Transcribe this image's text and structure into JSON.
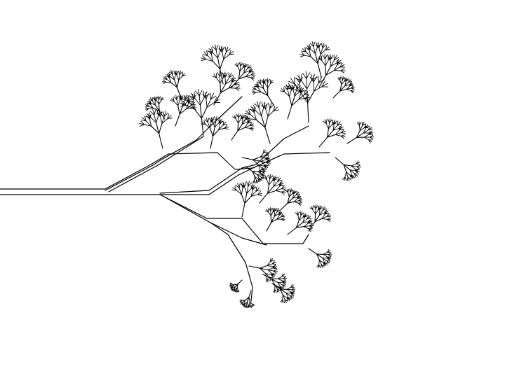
{
  "figure": {
    "subject": "fractal-branching-tree",
    "background_color": "#ffffff",
    "stroke_color": "#000000"
  }
}
